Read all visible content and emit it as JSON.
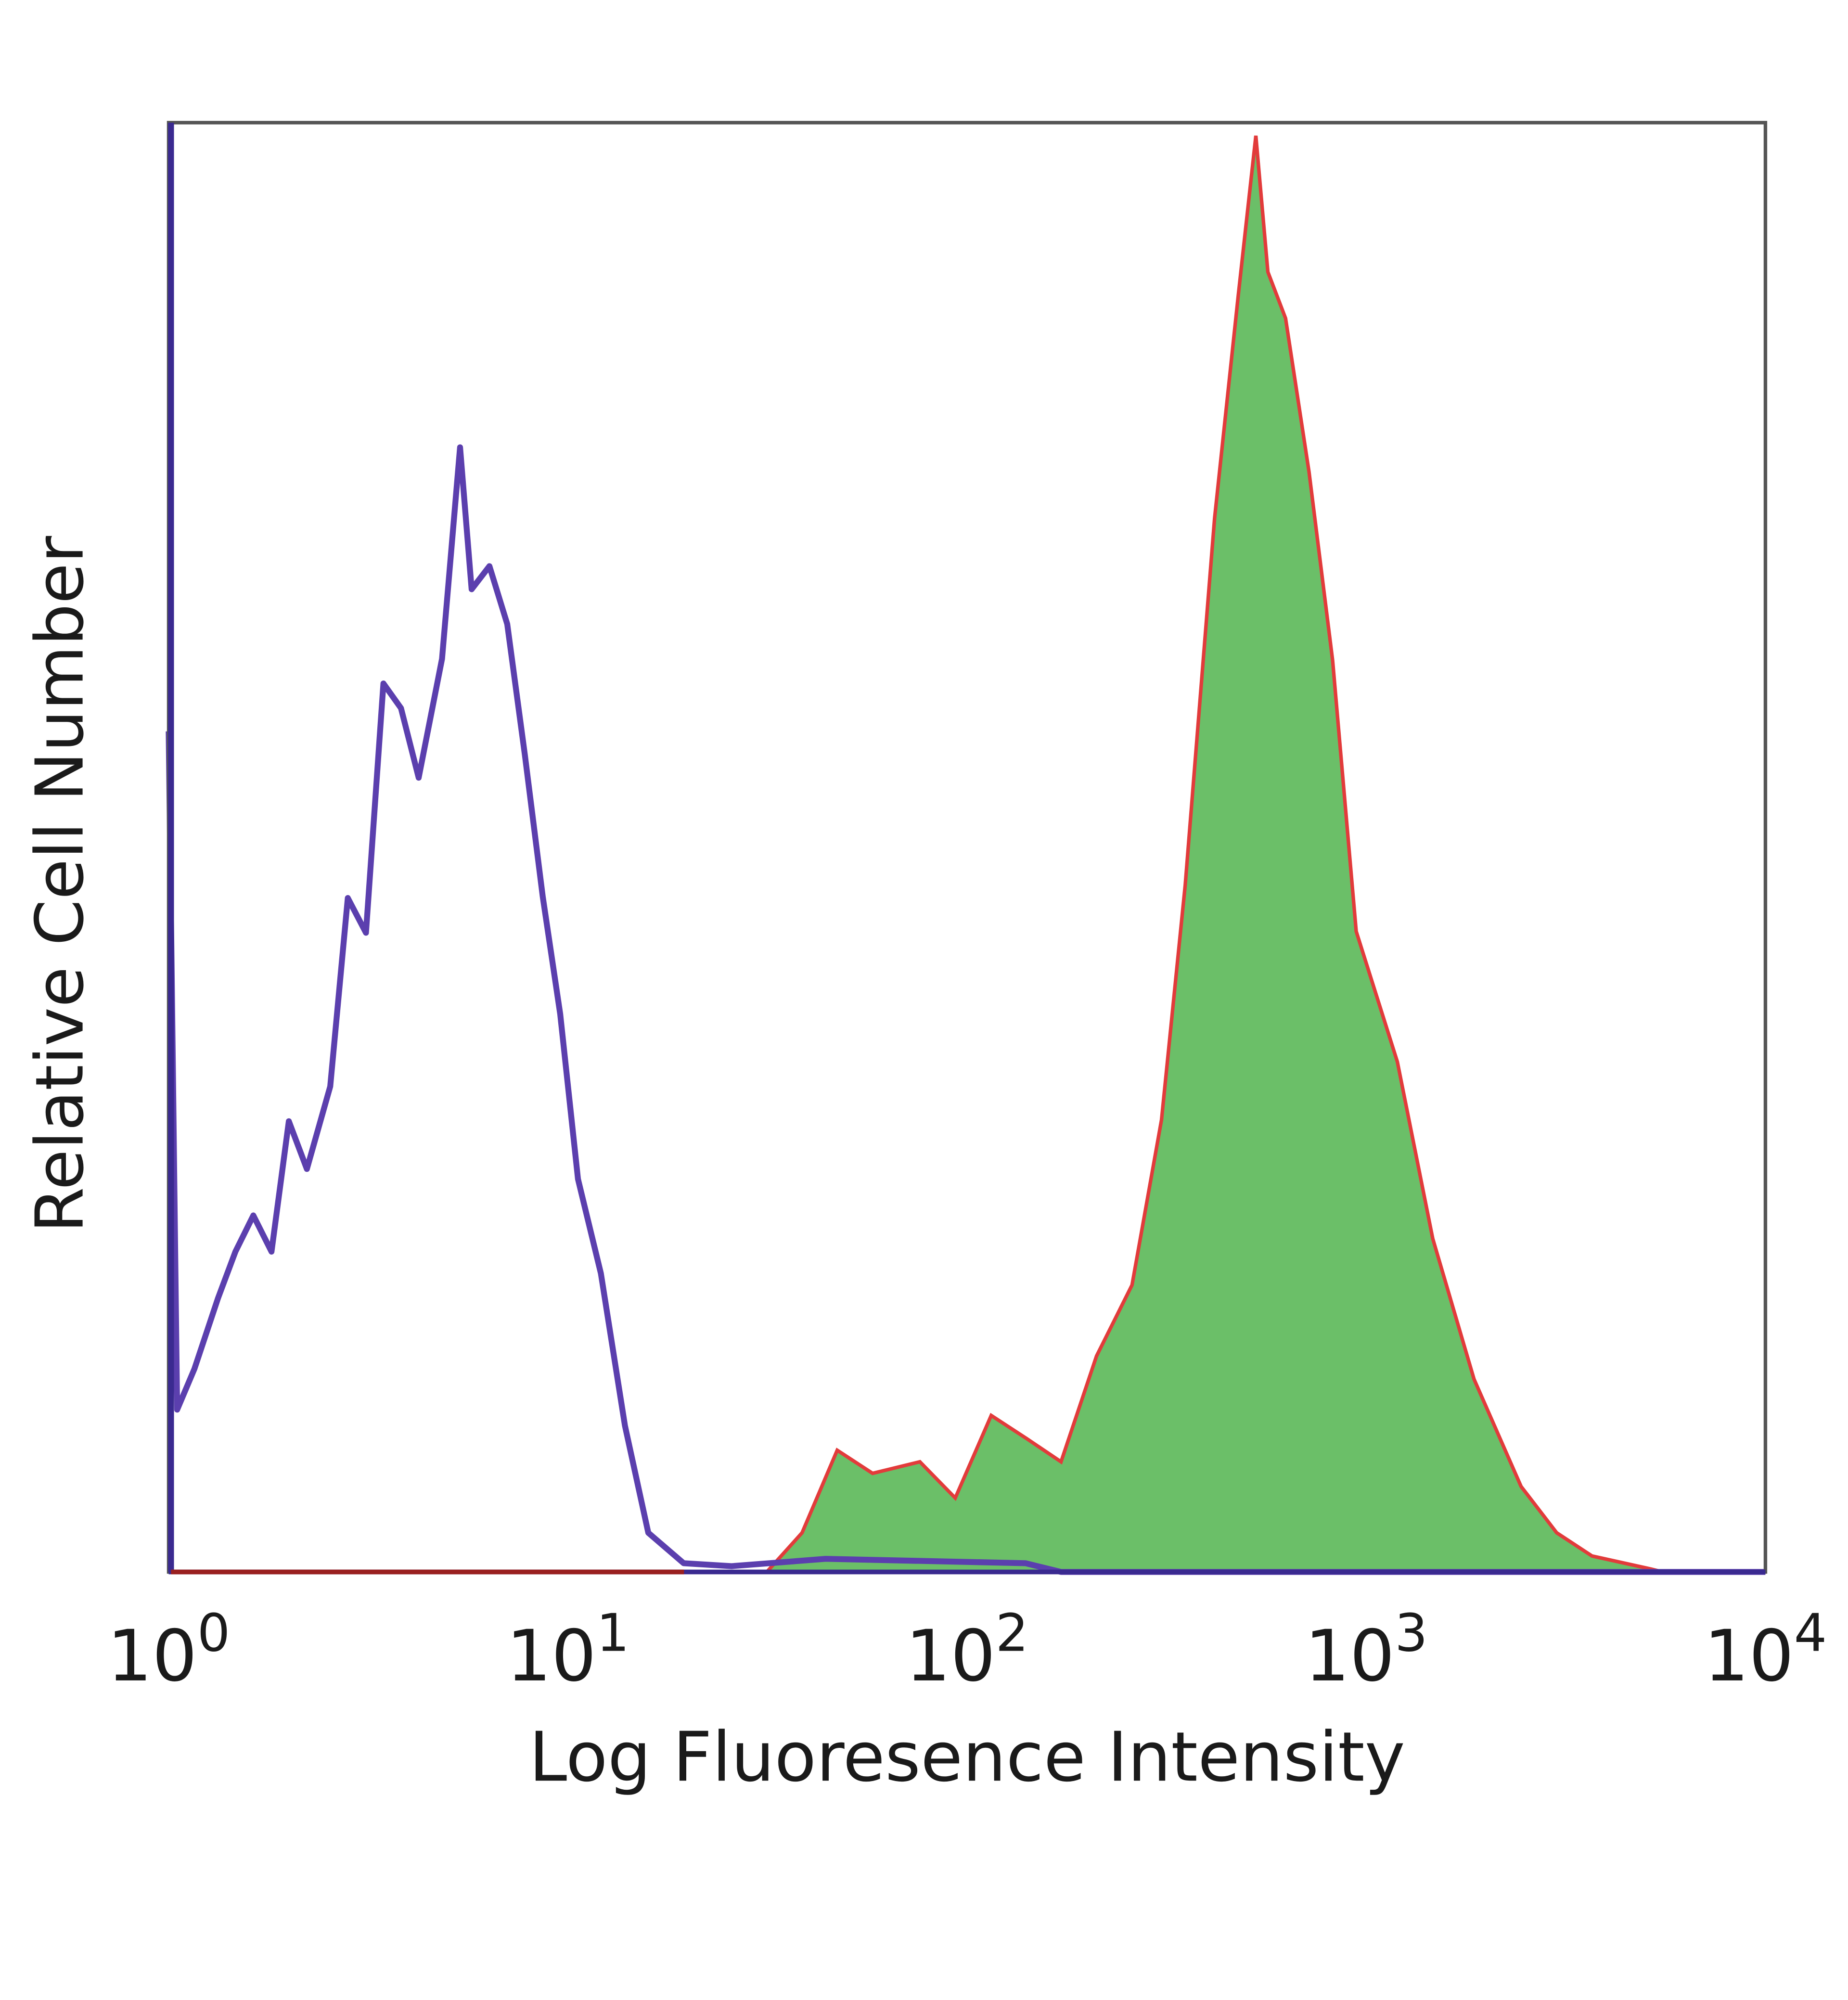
{
  "chart_data": {
    "type": "area",
    "title": "",
    "xlabel": "Log Fluoresence Intensity",
    "ylabel": "Relative Cell Number",
    "x_scale": "log",
    "xlim": [
      1,
      10000
    ],
    "ylim": [
      0,
      100
    ],
    "grid": false,
    "legend": "none",
    "x_ticks": [
      {
        "value": 1,
        "base": "10",
        "exp": "0"
      },
      {
        "value": 10,
        "base": "10",
        "exp": "1"
      },
      {
        "value": 100,
        "base": "10",
        "exp": "2"
      },
      {
        "value": 1000,
        "base": "10",
        "exp": "3"
      },
      {
        "value": 10000,
        "base": "10",
        "exp": "4"
      }
    ],
    "series": [
      {
        "style": "outline",
        "color": "#5b3fae",
        "x": [
          1.0,
          1.05,
          1.16,
          1.33,
          1.47,
          1.63,
          1.81,
          2.0,
          2.22,
          2.54,
          2.81,
          3.12,
          3.45,
          3.82,
          4.23,
          4.84,
          5.37,
          5.74,
          6.36,
          7.05,
          7.8,
          8.65,
          9.57,
          10.6,
          12.1,
          13.9,
          15.9,
          19.5,
          25.7,
          44.2,
          140,
          172,
          10000
        ],
        "y": [
          58,
          11.2,
          14.0,
          18.9,
          22.1,
          24.6,
          22.1,
          31.1,
          27.8,
          33.5,
          46.5,
          44.1,
          61.3,
          59.6,
          54.8,
          63.0,
          77.6,
          67.8,
          69.4,
          65.4,
          56.4,
          46.6,
          38.5,
          27.1,
          20.6,
          10.1,
          2.7,
          0.6,
          0.4,
          0.9,
          0.6,
          0,
          0
        ]
      },
      {
        "style": "filled",
        "color": "#6bbf68",
        "outline_color": "#e23b3b",
        "x": [
          31.5,
          38.6,
          47.3,
          58.0,
          76.2,
          93.4,
          115,
          141,
          172,
          211,
          259,
          307,
          352,
          417,
          478,
          529,
          567,
          628,
          719,
          824,
          944,
          1197,
          1468,
          1862,
          2443,
          3000,
          3680,
          5164,
          5530
        ],
        "y": [
          0,
          2.7,
          8.4,
          6.8,
          7.6,
          5.1,
          10.8,
          9.2,
          7.6,
          14.9,
          19.8,
          31.2,
          47.4,
          72.7,
          88.1,
          99.1,
          89.7,
          86.5,
          75.9,
          62.9,
          44.2,
          35.2,
          23.0,
          13.3,
          5.9,
          2.7,
          1.1,
          0.2,
          0
        ]
      }
    ]
  }
}
